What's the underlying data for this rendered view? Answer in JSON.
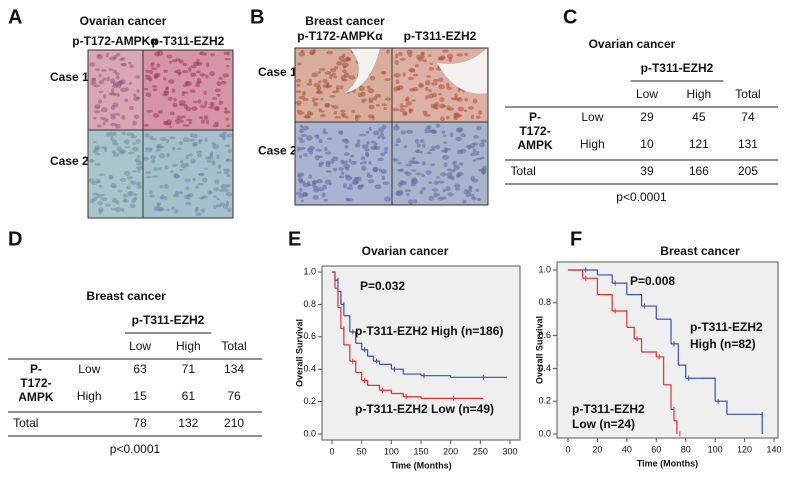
{
  "panels": [
    {
      "letter": "A",
      "title": "Ovarian cancer",
      "columns": [
        "p-T172-AMPKα",
        "p-T311-EZH2"
      ],
      "rows": [
        "Case 1",
        "Case 2"
      ]
    },
    {
      "letter": "B",
      "title": "Breast cancer",
      "columns": [
        "p-T172-AMPKα",
        "p-T311-EZH2"
      ],
      "rows": [
        "Case 1",
        "Case 2"
      ]
    }
  ],
  "tables": [
    {
      "letter": "C",
      "title": "Ovarian cancer",
      "column_group": "p-T311-EZH2",
      "columns": [
        "Low",
        "High",
        "Total"
      ],
      "row_group": [
        "P-",
        "T172-",
        "AMPK"
      ],
      "rows": [
        {
          "label": "Low",
          "cells": [
            29,
            45,
            74
          ]
        },
        {
          "label": "High",
          "cells": [
            10,
            121,
            131
          ]
        }
      ],
      "total": {
        "label": "Total",
        "cells": [
          39,
          166,
          205
        ]
      },
      "p_value": "p<0.0001"
    },
    {
      "letter": "D",
      "title": "Breast cancer",
      "column_group": "p-T311-EZH2",
      "columns": [
        "Low",
        "High",
        "Total"
      ],
      "row_group": [
        "P-",
        "T172-",
        "AMPK"
      ],
      "rows": [
        {
          "label": "Low",
          "cells": [
            63,
            71,
            134
          ]
        },
        {
          "label": "High",
          "cells": [
            15,
            61,
            76
          ]
        }
      ],
      "total": {
        "label": "Total",
        "cells": [
          78,
          132,
          210
        ]
      },
      "p_value": "p<0.0001"
    }
  ],
  "chart_data": [
    {
      "type": "line",
      "drawstyle": "steps",
      "panel": "E",
      "title": "Ovarian cancer",
      "x_label": "Time (Months)",
      "y_label": "Overall Survival",
      "xlim": [
        0,
        300
      ],
      "xticks": [
        0,
        50,
        100,
        150,
        200,
        250,
        300
      ],
      "ylim": [
        0,
        1
      ],
      "yticks": [
        {
          "value": 0,
          "label": "0.0"
        },
        {
          "value": 0.2,
          "label": "0.2"
        },
        {
          "value": 0.4,
          "label": "0.4"
        },
        {
          "value": 0.6,
          "label": "0.6"
        },
        {
          "value": 0.8,
          "label": "0.8"
        },
        {
          "value": 1,
          "label": "1.0"
        }
      ],
      "annotations": [
        "P=0.032",
        "p-T311-EZH2 High (n=186)",
        "p-T311-EZH2 Low (n=49)"
      ],
      "series": [
        {
          "name": "p-T311-EZH2 High",
          "color": "#3a4fb0",
          "x": [
            0,
            5,
            10,
            15,
            20,
            30,
            40,
            50,
            60,
            70,
            80,
            100,
            120,
            150,
            200,
            250,
            295
          ],
          "values": [
            1,
            0.95,
            0.88,
            0.8,
            0.73,
            0.63,
            0.56,
            0.52,
            0.48,
            0.45,
            0.43,
            0.4,
            0.37,
            0.36,
            0.35,
            0.35,
            0.35
          ]
        },
        {
          "name": "p-T311-EZH2 Low",
          "color": "#e03030",
          "x": [
            0,
            5,
            10,
            15,
            20,
            30,
            40,
            50,
            60,
            80,
            100,
            120,
            150,
            200,
            255
          ],
          "values": [
            1,
            0.9,
            0.78,
            0.65,
            0.55,
            0.45,
            0.38,
            0.33,
            0.3,
            0.27,
            0.25,
            0.23,
            0.22,
            0.22,
            0.22
          ]
        }
      ]
    },
    {
      "type": "line",
      "drawstyle": "steps",
      "panel": "F",
      "title": "Breast cancer",
      "x_label": "Time (Months)",
      "y_label": "Overall Survival",
      "xlim": [
        0,
        140
      ],
      "xticks": [
        0,
        20,
        40,
        60,
        80,
        100,
        120,
        140
      ],
      "ylim": [
        0,
        1
      ],
      "yticks": [
        {
          "value": 0,
          "label": "0.0"
        },
        {
          "value": 0.2,
          "label": "0.2"
        },
        {
          "value": 0.4,
          "label": "0.4"
        },
        {
          "value": 0.6,
          "label": "0.6"
        },
        {
          "value": 0.8,
          "label": "0.8"
        },
        {
          "value": 1,
          "label": "1.0"
        }
      ],
      "annotations": [
        "P=0.008",
        "p-T311-EZH2",
        "High (n=82)",
        "p-T311-EZH2",
        "Low (n=24)"
      ],
      "series": [
        {
          "name": "p-T311-EZH2 High",
          "color": "#3a4fb0",
          "x": [
            0,
            10,
            20,
            30,
            40,
            50,
            60,
            70,
            75,
            80,
            90,
            100,
            108,
            130,
            132
          ],
          "values": [
            1,
            1,
            0.97,
            0.92,
            0.85,
            0.78,
            0.7,
            0.55,
            0.42,
            0.34,
            0.34,
            0.2,
            0.12,
            0.12,
            0
          ]
        },
        {
          "name": "p-T311-EZH2 Low",
          "color": "#e03030",
          "x": [
            0,
            10,
            20,
            30,
            40,
            45,
            50,
            60,
            65,
            70,
            72,
            74
          ],
          "values": [
            1,
            0.95,
            0.85,
            0.75,
            0.65,
            0.58,
            0.5,
            0.47,
            0.3,
            0.15,
            0.08,
            0
          ]
        }
      ]
    }
  ]
}
